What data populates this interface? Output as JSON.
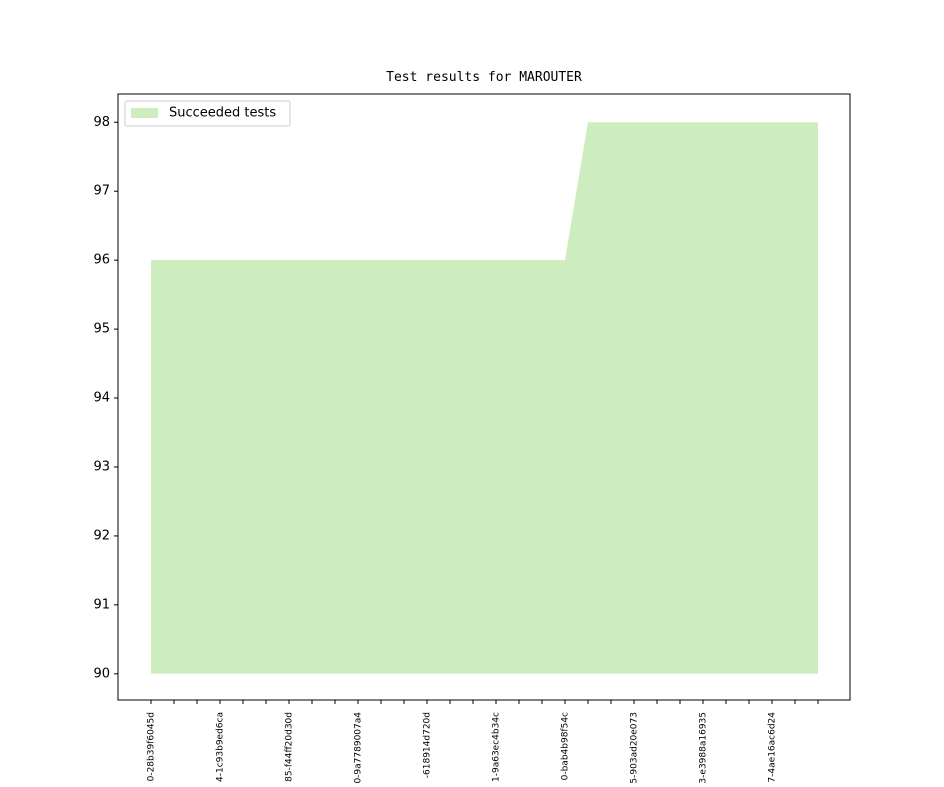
{
  "chart_data": {
    "type": "area",
    "title": "Test results for MAROUTER",
    "categories": [
      "0-28b39f6045d",
      null,
      null,
      "4-1c93b9ed6ca",
      null,
      null,
      "85-f44ff20d30d",
      null,
      null,
      "0-9a7789007a4",
      null,
      null,
      "-618914d720d",
      null,
      null,
      "1-9a63ec4b34c",
      null,
      null,
      "0-bab4b98f54c",
      null,
      null,
      "5-903ad20e073",
      null,
      null,
      "3-e3988a16935",
      null,
      null,
      "7-4ae16ac6d24",
      null,
      null
    ],
    "series": [
      {
        "name": "Succeeded tests",
        "color": "#cdedbf",
        "values": [
          96,
          96,
          96,
          96,
          96,
          96,
          96,
          96,
          96,
          96,
          96,
          96,
          96,
          96,
          96,
          96,
          96,
          96,
          96,
          98,
          98,
          98,
          98,
          98,
          98,
          98,
          98,
          98,
          98,
          98
        ]
      }
    ],
    "fill_base": 90,
    "ylim": [
      89.62,
      98.41
    ],
    "yticks": [
      90,
      91,
      92,
      93,
      94,
      95,
      96,
      97,
      98
    ],
    "legend": "upper left"
  }
}
